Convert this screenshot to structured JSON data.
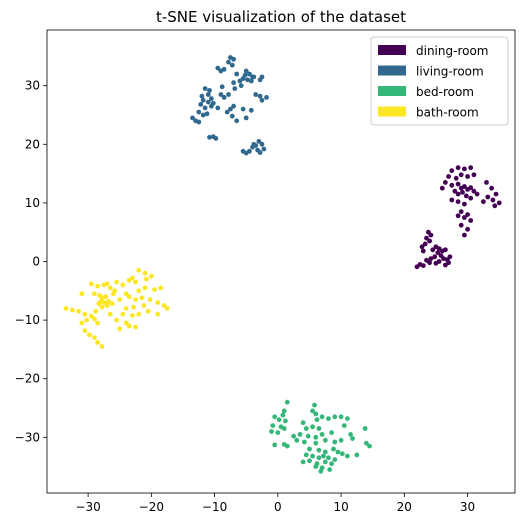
{
  "chart_data": {
    "type": "scatter",
    "title": "t-SNE visualization of the dataset",
    "xlabel": "",
    "ylabel": "",
    "xlim": [
      -36.5,
      37.5
    ],
    "ylim": [
      -39.5,
      39.5
    ],
    "xticks": [
      -30,
      -20,
      -10,
      0,
      10,
      20,
      30
    ],
    "yticks": [
      -30,
      -20,
      -10,
      0,
      10,
      20,
      30
    ],
    "xtick_labels": [
      "−30",
      "−20",
      "−10",
      "0",
      "10",
      "20",
      "30"
    ],
    "ytick_labels": [
      "−30",
      "−20",
      "−10",
      "0",
      "10",
      "20",
      "30"
    ],
    "grid": false,
    "legend_position": "top-right",
    "series": [
      {
        "name": "dining-room",
        "color": "#440154",
        "points": [
          [
            27.5,
            15.5
          ],
          [
            28.5,
            16.0
          ],
          [
            29.5,
            15.8
          ],
          [
            30.5,
            16.0
          ],
          [
            27.0,
            14.5
          ],
          [
            28.2,
            14.2
          ],
          [
            29.0,
            14.8
          ],
          [
            30.0,
            14.5
          ],
          [
            31.0,
            14.8
          ],
          [
            26.5,
            13.5
          ],
          [
            27.5,
            13.0
          ],
          [
            28.5,
            13.2
          ],
          [
            29.0,
            12.5
          ],
          [
            29.5,
            12.8
          ],
          [
            30.0,
            12.3
          ],
          [
            30.5,
            12.6
          ],
          [
            29.2,
            11.8
          ],
          [
            28.5,
            11.5
          ],
          [
            29.8,
            11.2
          ],
          [
            31.0,
            12.0
          ],
          [
            31.5,
            11.5
          ],
          [
            26.0,
            12.5
          ],
          [
            28.0,
            12.0
          ],
          [
            30.5,
            10.8
          ],
          [
            27.5,
            10.5
          ],
          [
            28.5,
            10.2
          ],
          [
            33.0,
            13.5
          ],
          [
            33.8,
            12.5
          ],
          [
            34.5,
            11.5
          ],
          [
            33.2,
            11.0
          ],
          [
            34.0,
            10.5
          ],
          [
            35.0,
            10.0
          ],
          [
            34.3,
            9.5
          ],
          [
            32.5,
            10.2
          ],
          [
            29.5,
            9.8
          ],
          [
            29.0,
            8.5
          ],
          [
            30.0,
            8.0
          ],
          [
            29.5,
            7.5
          ],
          [
            28.5,
            7.8
          ],
          [
            30.5,
            7.0
          ],
          [
            23.8,
            5.0
          ],
          [
            24.2,
            4.5
          ],
          [
            23.5,
            4.0
          ],
          [
            24.0,
            3.5
          ],
          [
            23.3,
            3.0
          ],
          [
            22.8,
            2.5
          ],
          [
            23.0,
            1.8
          ],
          [
            24.5,
            2.0
          ],
          [
            25.0,
            2.5
          ],
          [
            25.5,
            2.2
          ],
          [
            26.0,
            1.8
          ],
          [
            26.5,
            2.0
          ],
          [
            25.3,
            1.5
          ],
          [
            25.8,
            1.0
          ],
          [
            24.8,
            0.8
          ],
          [
            24.2,
            0.5
          ],
          [
            26.2,
            0.5
          ],
          [
            26.8,
            0.3
          ],
          [
            27.0,
            -0.2
          ],
          [
            25.5,
            0.0
          ],
          [
            23.5,
            0.2
          ],
          [
            22.5,
            -0.5
          ],
          [
            22.0,
            -0.9
          ],
          [
            23.0,
            -0.7
          ],
          [
            25.0,
            -0.3
          ],
          [
            26.5,
            -0.6
          ],
          [
            24.0,
            -0.2
          ],
          [
            27.2,
            0.8
          ],
          [
            29.5,
            4.5
          ],
          [
            30.0,
            5.5
          ],
          [
            29.0,
            6.2
          ]
        ]
      },
      {
        "name": "living-room",
        "color": "#31688e",
        "points": [
          [
            -7.5,
            34.8
          ],
          [
            -7.0,
            34.5
          ],
          [
            -7.8,
            34.0
          ],
          [
            -7.2,
            33.5
          ],
          [
            -9.5,
            33.0
          ],
          [
            -8.5,
            32.8
          ],
          [
            -9.0,
            32.5
          ],
          [
            -5.0,
            32.5
          ],
          [
            -4.5,
            32.0
          ],
          [
            -5.2,
            31.8
          ],
          [
            -4.0,
            31.5
          ],
          [
            -5.5,
            31.2
          ],
          [
            -4.8,
            31.0
          ],
          [
            -3.8,
            31.5
          ],
          [
            -4.2,
            30.8
          ],
          [
            -6.0,
            30.8
          ],
          [
            -7.0,
            30.5
          ],
          [
            -5.8,
            30.0
          ],
          [
            -2.5,
            31.5
          ],
          [
            -2.8,
            31.0
          ],
          [
            -11.5,
            29.5
          ],
          [
            -10.8,
            29.2
          ],
          [
            -11.0,
            28.5
          ],
          [
            -12.0,
            28.2
          ],
          [
            -10.5,
            27.8
          ],
          [
            -9.0,
            28.5
          ],
          [
            -8.5,
            28.0
          ],
          [
            -7.8,
            28.5
          ],
          [
            -3.5,
            28.5
          ],
          [
            -2.8,
            28.2
          ],
          [
            -2.5,
            27.5
          ],
          [
            -1.8,
            28.0
          ],
          [
            -11.8,
            27.5
          ],
          [
            -11.0,
            27.2
          ],
          [
            -10.2,
            27.0
          ],
          [
            -10.5,
            26.5
          ],
          [
            -11.5,
            26.2
          ],
          [
            -12.2,
            26.8
          ],
          [
            -9.5,
            26.2
          ],
          [
            -7.0,
            26.5
          ],
          [
            -7.5,
            26.0
          ],
          [
            -5.5,
            26.0
          ],
          [
            -4.2,
            25.8
          ],
          [
            -12.5,
            25.5
          ],
          [
            -11.8,
            25.0
          ],
          [
            -13.5,
            24.5
          ],
          [
            -13.0,
            24.0
          ],
          [
            -12.5,
            23.8
          ],
          [
            -11.2,
            25.2
          ],
          [
            -8.0,
            25.5
          ],
          [
            -7.2,
            24.8
          ],
          [
            -5.0,
            24.5
          ],
          [
            -6.5,
            24.0
          ],
          [
            -10.2,
            21.3
          ],
          [
            -9.8,
            21.0
          ],
          [
            -10.8,
            21.2
          ],
          [
            -3.0,
            20.5
          ],
          [
            -2.5,
            20.0
          ],
          [
            -3.5,
            19.8
          ],
          [
            -4.0,
            19.5
          ],
          [
            -2.2,
            19.2
          ],
          [
            -3.2,
            19.0
          ],
          [
            -4.5,
            18.8
          ],
          [
            -5.0,
            18.5
          ],
          [
            -5.5,
            18.8
          ],
          [
            -2.8,
            18.6
          ],
          [
            -3.8,
            20.0
          ],
          [
            -8.8,
            29.8
          ],
          [
            -6.5,
            32.0
          ],
          [
            -6.8,
            29.5
          ]
        ]
      },
      {
        "name": "bed-room",
        "color": "#35b779",
        "points": [
          [
            1.5,
            -24.0
          ],
          [
            5.8,
            -24.5
          ],
          [
            1.0,
            -25.5
          ],
          [
            0.8,
            -26.2
          ],
          [
            5.5,
            -25.5
          ],
          [
            6.0,
            -26.0
          ],
          [
            -0.5,
            -26.5
          ],
          [
            0.2,
            -27.0
          ],
          [
            1.2,
            -27.2
          ],
          [
            4.0,
            -27.5
          ],
          [
            6.2,
            -27.0
          ],
          [
            7.0,
            -26.5
          ],
          [
            8.0,
            -26.8
          ],
          [
            9.0,
            -26.5
          ],
          [
            10.0,
            -26.5
          ],
          [
            11.0,
            -26.8
          ],
          [
            -0.8,
            -28.0
          ],
          [
            0.5,
            -28.2
          ],
          [
            1.0,
            -28.5
          ],
          [
            4.5,
            -28.5
          ],
          [
            5.5,
            -28.2
          ],
          [
            6.5,
            -28.5
          ],
          [
            10.5,
            -28.0
          ],
          [
            -1.0,
            -29.0
          ],
          [
            0.0,
            -29.2
          ],
          [
            3.5,
            -29.5
          ],
          [
            4.8,
            -29.8
          ],
          [
            6.0,
            -30.0
          ],
          [
            7.0,
            -29.5
          ],
          [
            8.5,
            -29.2
          ],
          [
            11.5,
            -29.5
          ],
          [
            13.8,
            -28.5
          ],
          [
            3.0,
            -30.5
          ],
          [
            4.2,
            -30.8
          ],
          [
            6.0,
            -31.0
          ],
          [
            7.5,
            -30.5
          ],
          [
            9.0,
            -30.8
          ],
          [
            10.0,
            -30.5
          ],
          [
            1.0,
            -31.2
          ],
          [
            1.5,
            -31.5
          ],
          [
            14.0,
            -31.0
          ],
          [
            14.5,
            -31.5
          ],
          [
            -0.5,
            -31.3
          ],
          [
            5.0,
            -32.0
          ],
          [
            6.5,
            -32.2
          ],
          [
            7.5,
            -32.5
          ],
          [
            8.8,
            -32.0
          ],
          [
            9.5,
            -32.5
          ],
          [
            10.2,
            -32.8
          ],
          [
            11.0,
            -33.2
          ],
          [
            4.5,
            -33.0
          ],
          [
            5.5,
            -33.2
          ],
          [
            6.5,
            -33.5
          ],
          [
            7.2,
            -33.2
          ],
          [
            8.0,
            -33.5
          ],
          [
            9.0,
            -33.8
          ],
          [
            5.0,
            -34.0
          ],
          [
            6.2,
            -34.5
          ],
          [
            7.5,
            -34.2
          ],
          [
            8.5,
            -34.5
          ],
          [
            4.0,
            -34.2
          ],
          [
            6.0,
            -35.0
          ],
          [
            7.0,
            -35.2
          ],
          [
            6.8,
            -35.8
          ],
          [
            8.2,
            -35.5
          ],
          [
            2.5,
            -29.8
          ],
          [
            12.5,
            -33.0
          ],
          [
            11.8,
            -30.2
          ]
        ]
      },
      {
        "name": "bath-room",
        "color": "#fde725",
        "points": [
          [
            -22.0,
            -1.5
          ],
          [
            -21.0,
            -2.0
          ],
          [
            -20.0,
            -2.5
          ],
          [
            -23.0,
            -2.8
          ],
          [
            -22.5,
            -3.5
          ],
          [
            -25.5,
            -3.5
          ],
          [
            -24.5,
            -4.0
          ],
          [
            -29.5,
            -3.8
          ],
          [
            -28.5,
            -4.2
          ],
          [
            -27.5,
            -4.0
          ],
          [
            -26.5,
            -4.5
          ],
          [
            -25.8,
            -5.0
          ],
          [
            -21.0,
            -4.5
          ],
          [
            -19.5,
            -4.8
          ],
          [
            -18.5,
            -4.5
          ],
          [
            -22.0,
            -5.0
          ],
          [
            -31.0,
            -5.5
          ],
          [
            -29.0,
            -5.5
          ],
          [
            -28.2,
            -5.8
          ],
          [
            -27.8,
            -6.2
          ],
          [
            -27.2,
            -6.0
          ],
          [
            -28.0,
            -6.8
          ],
          [
            -27.5,
            -7.0
          ],
          [
            -26.8,
            -6.8
          ],
          [
            -28.3,
            -7.2
          ],
          [
            -27.0,
            -7.5
          ],
          [
            -27.8,
            -7.8
          ],
          [
            -26.2,
            -7.2
          ],
          [
            -25.0,
            -6.5
          ],
          [
            -23.5,
            -6.0
          ],
          [
            -22.5,
            -6.5
          ],
          [
            -21.5,
            -6.2
          ],
          [
            -20.2,
            -6.5
          ],
          [
            -19.0,
            -7.0
          ],
          [
            -18.0,
            -7.5
          ],
          [
            -17.5,
            -8.0
          ],
          [
            -21.2,
            -7.5
          ],
          [
            -22.8,
            -7.8
          ],
          [
            -24.0,
            -8.0
          ],
          [
            -33.5,
            -8.0
          ],
          [
            -32.5,
            -8.3
          ],
          [
            -31.5,
            -8.5
          ],
          [
            -30.5,
            -9.0
          ],
          [
            -29.5,
            -9.3
          ],
          [
            -29.0,
            -9.8
          ],
          [
            -30.2,
            -10.0
          ],
          [
            -31.0,
            -10.5
          ],
          [
            -28.5,
            -10.5
          ],
          [
            -24.5,
            -9.0
          ],
          [
            -23.0,
            -9.2
          ],
          [
            -22.0,
            -9.0
          ],
          [
            -25.5,
            -10.0
          ],
          [
            -24.0,
            -10.5
          ],
          [
            -23.5,
            -11.0
          ],
          [
            -25.0,
            -11.5
          ],
          [
            -22.5,
            -11.2
          ],
          [
            -29.8,
            -12.5
          ],
          [
            -29.0,
            -13.0
          ],
          [
            -28.5,
            -13.8
          ],
          [
            -27.8,
            -14.5
          ],
          [
            -30.5,
            -11.8
          ],
          [
            -26.0,
            -5.5
          ],
          [
            -24.0,
            -5.5
          ],
          [
            -20.5,
            -8.5
          ],
          [
            -19.0,
            -9.0
          ],
          [
            -26.5,
            -9.0
          ],
          [
            -28.8,
            -8.5
          ],
          [
            -27.0,
            -3.8
          ],
          [
            -23.5,
            -3.2
          ],
          [
            -20.8,
            -3.0
          ]
        ]
      }
    ]
  }
}
